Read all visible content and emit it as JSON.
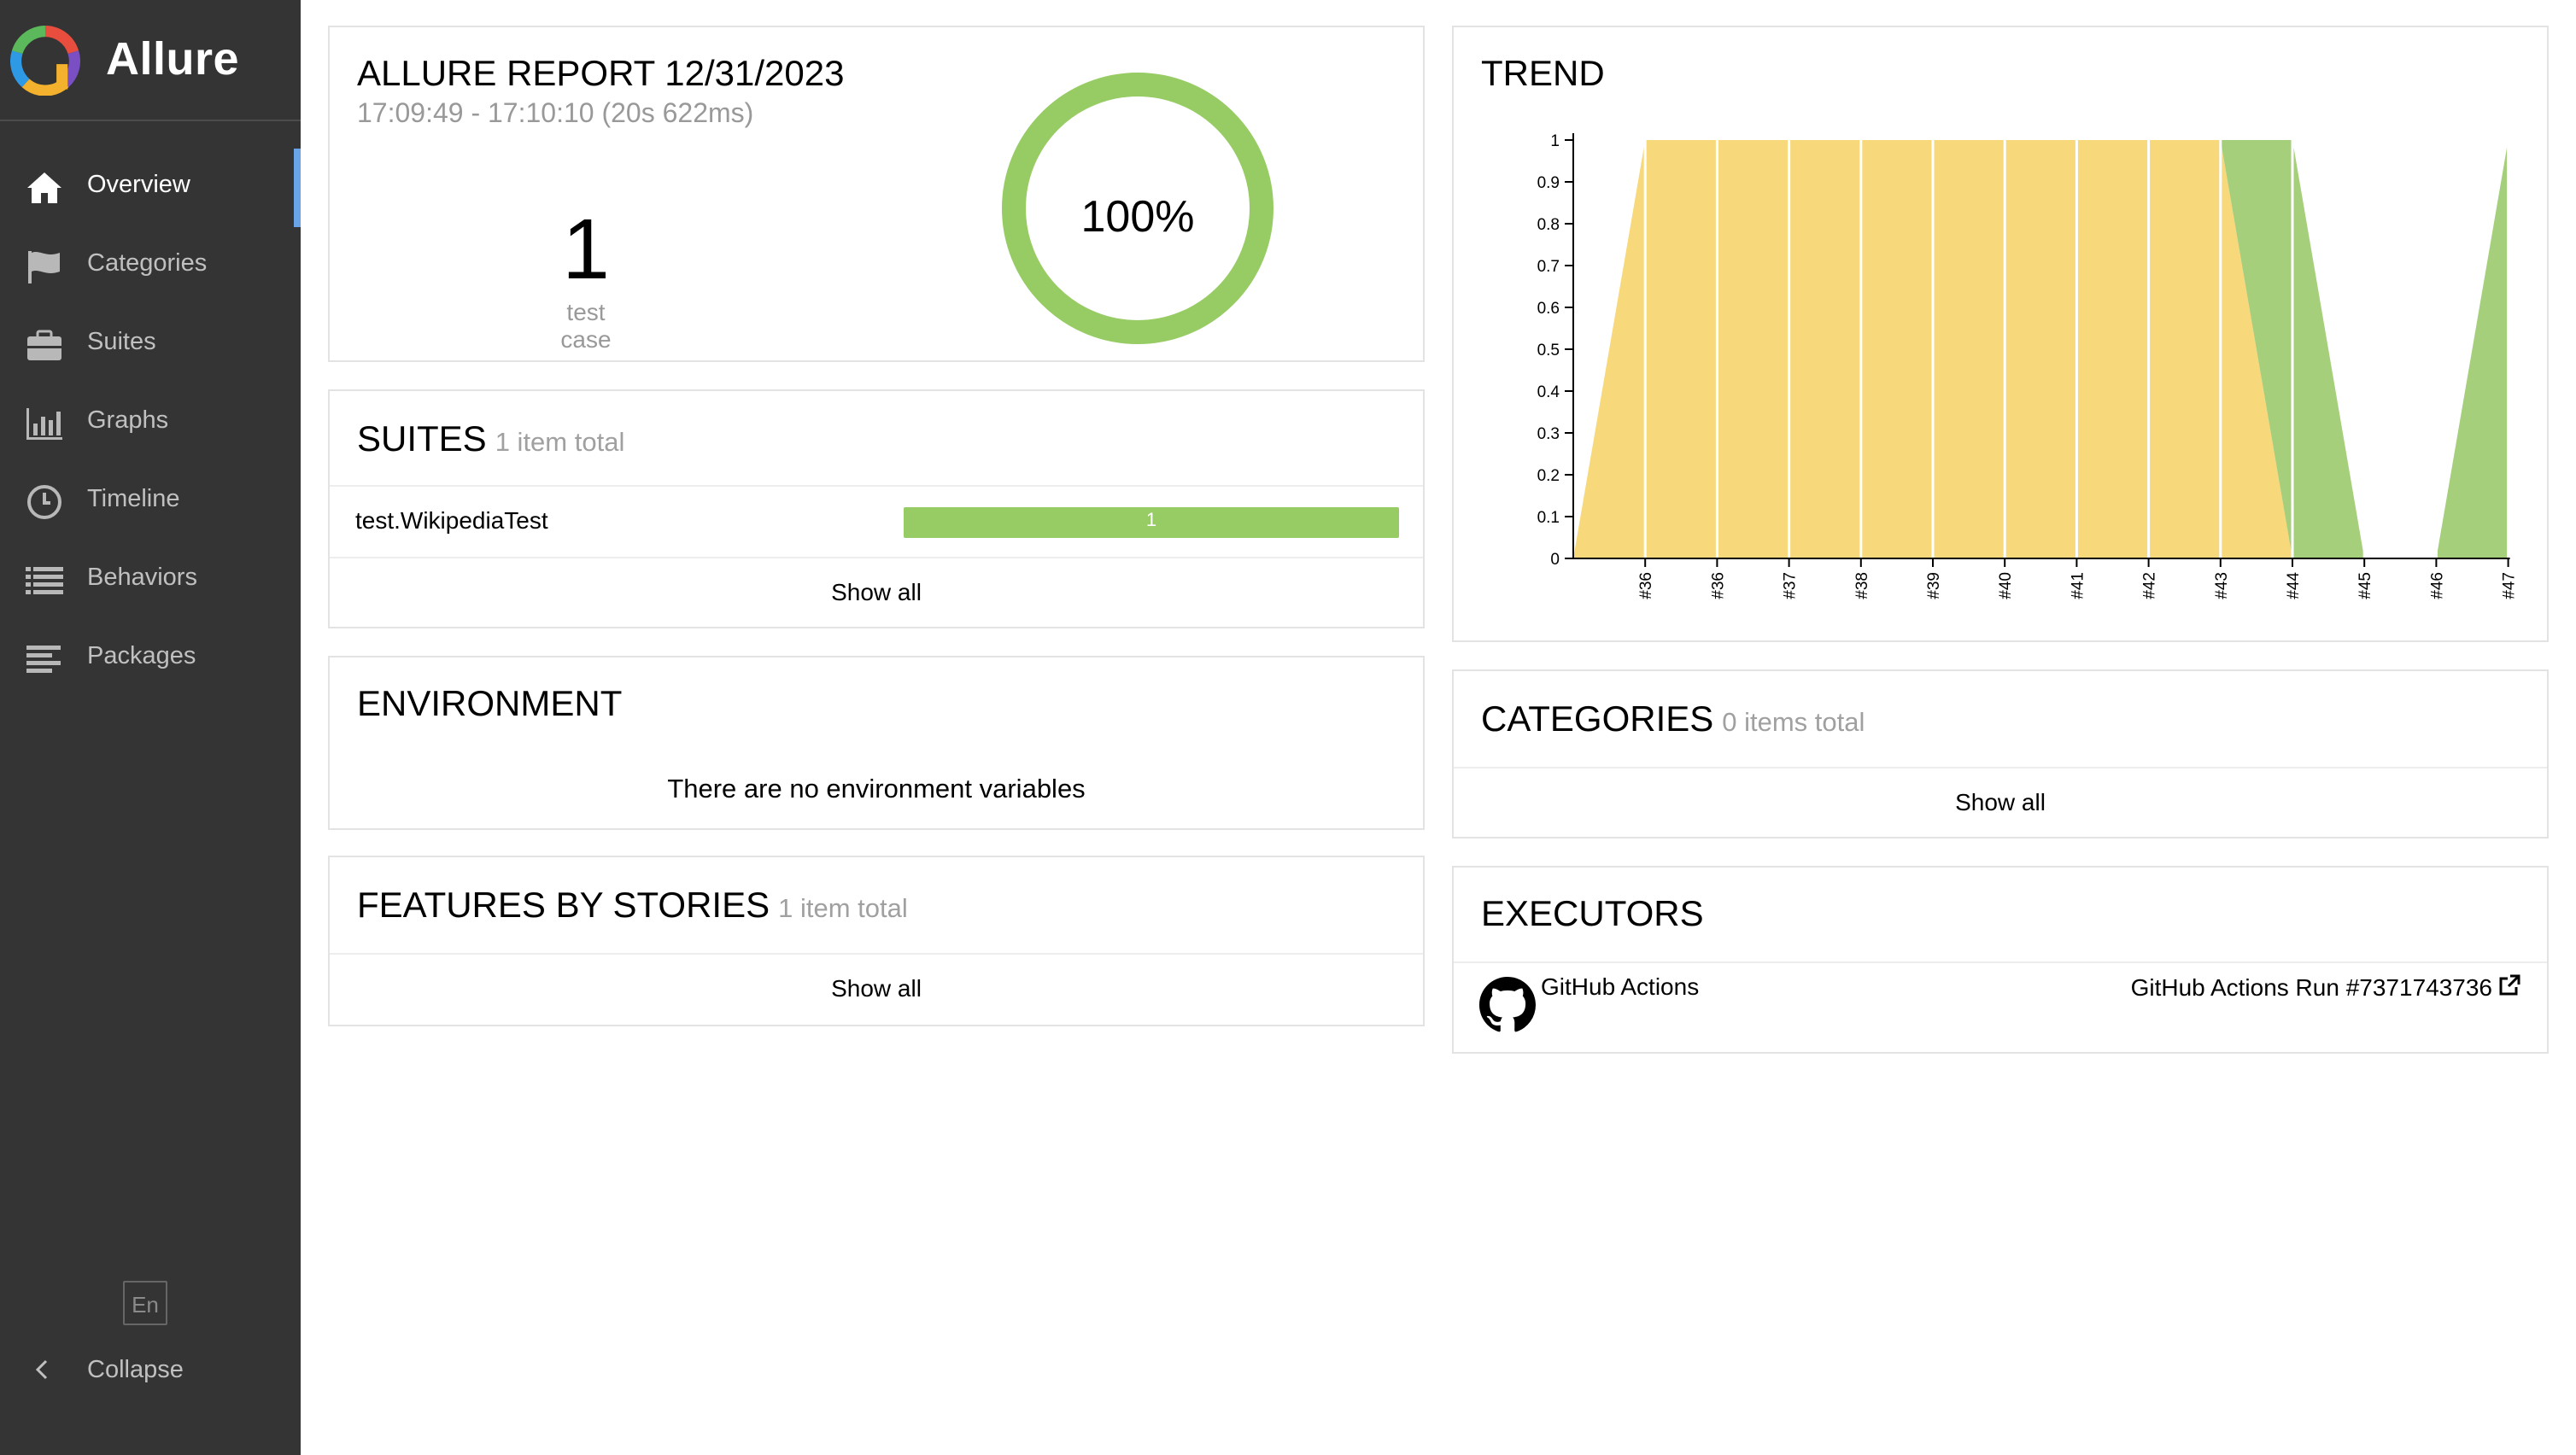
{
  "app": {
    "name": "Allure"
  },
  "sidebar": {
    "items": [
      {
        "label": "Overview",
        "icon": "home-icon",
        "active": true
      },
      {
        "label": "Categories",
        "icon": "flag-icon",
        "active": false
      },
      {
        "label": "Suites",
        "icon": "briefcase-icon",
        "active": false
      },
      {
        "label": "Graphs",
        "icon": "bar-chart-icon",
        "active": false
      },
      {
        "label": "Timeline",
        "icon": "clock-icon",
        "active": false
      },
      {
        "label": "Behaviors",
        "icon": "list-icon",
        "active": false
      },
      {
        "label": "Packages",
        "icon": "align-left-icon",
        "active": false
      }
    ],
    "language": "En",
    "collapse_label": "Collapse"
  },
  "summary": {
    "title": "ALLURE REPORT 12/31/2023",
    "time_range": "17:09:49 - 17:10:10 (20s 622ms)",
    "test_count": "1",
    "test_count_label": "test case",
    "pass_rate": "100%",
    "pass_fraction": 1.0,
    "pass_color": "#97cc64"
  },
  "suites": {
    "title": "SUITES",
    "subtitle": "1 item total",
    "items": [
      {
        "name": "test.WikipediaTest",
        "passed": "1"
      }
    ],
    "show_all": "Show all"
  },
  "environment": {
    "title": "ENVIRONMENT",
    "empty_text": "There are no environment variables"
  },
  "features": {
    "title": "FEATURES BY STORIES",
    "subtitle": "1 item total",
    "show_all": "Show all"
  },
  "trend": {
    "title": "TREND",
    "colors": {
      "broken": "#f7d87a",
      "passed": "#a6cf7c"
    }
  },
  "categories": {
    "title": "CATEGORIES",
    "subtitle": "0 items total",
    "show_all": "Show all"
  },
  "executors": {
    "title": "EXECUTORS",
    "items": [
      {
        "name": "GitHub Actions",
        "run": "GitHub Actions Run #7371743736",
        "icon": "github-icon"
      }
    ]
  },
  "chart_data": {
    "type": "area",
    "title": "TREND",
    "x": [
      "#36",
      "#36",
      "#37",
      "#38",
      "#39",
      "#40",
      "#41",
      "#42",
      "#43",
      "#44",
      "#45",
      "#46",
      "#47"
    ],
    "series": [
      {
        "color": "#f7d87a",
        "values": [
          1,
          1,
          1,
          1,
          1,
          1,
          1,
          1,
          1,
          0,
          0,
          0,
          0
        ]
      },
      {
        "color": "#a6cf7c",
        "values": [
          0,
          0,
          0,
          0,
          0,
          0,
          0,
          0,
          0,
          1,
          0,
          0,
          1
        ]
      }
    ],
    "leading_zero_point": true,
    "ylim": [
      0,
      1
    ],
    "yticks": [
      "0",
      "0.1",
      "0.2",
      "0.3",
      "0.4",
      "0.5",
      "0.6",
      "0.7",
      "0.8",
      "0.9",
      "1"
    ],
    "stacked": true,
    "grid": false
  }
}
